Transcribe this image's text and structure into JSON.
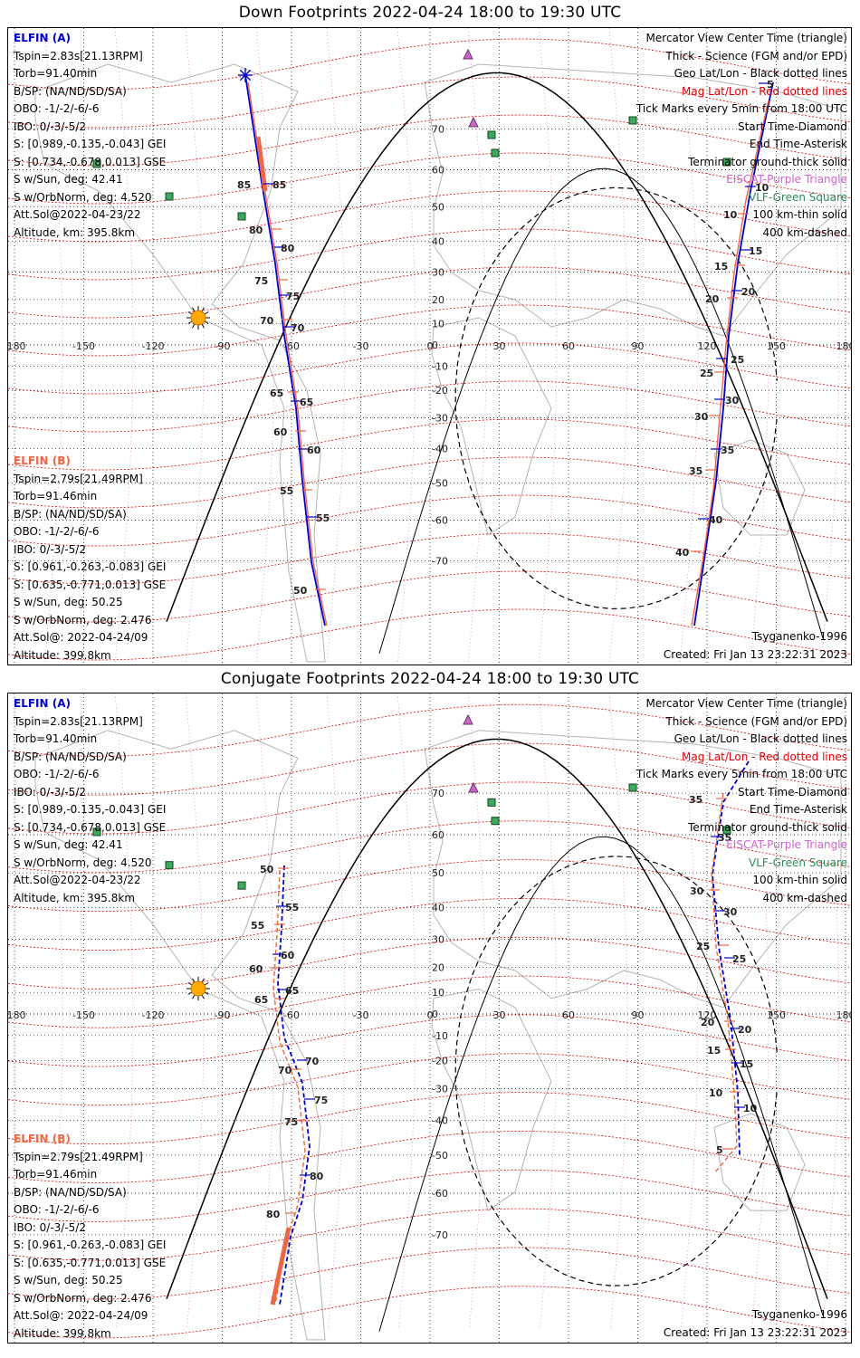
{
  "colors": {
    "elfin_a": "#0000cc",
    "elfin_b": "#ee6644",
    "geo_grid": "#000000",
    "mag_grid": "#dd0000",
    "land": "#b4b4b4",
    "science": "#ee6644",
    "vlf": "#2e8b57",
    "eiscat": "#cc66cc"
  },
  "panels": [
    {
      "title": "Down Footprints 2022-04-24 18:00 to 19:30 UTC",
      "elfin_a": {
        "name": "ELFIN (A)",
        "lines": [
          "Tspin=2.83s[21.13RPM]",
          "Torb=91.40min",
          "B/SP: (NA/ND/SD/SA)",
          "OBO: -1/-2/-6/-6",
          "IBO: 0/-3/-5/2",
          "S: [0.989,-0.135,-0.043] GEI",
          "S: [0.734,-0.678,0.013] GSE",
          "S w/Sun, deg: 42.41",
          "S w/OrbNorm, deg: 4.520",
          "Att.Sol@2022-04-23/22",
          "Altitude, km: 395.8km"
        ]
      },
      "elfin_b": {
        "name": "ELFIN (B)",
        "lines": [
          "Tspin=2.79s[21.49RPM]",
          "Torb=91.46min",
          "B/SP: (NA/ND/SD/SA)",
          "OBO: -1/-2/-6/-6",
          "IBO: 0/-3/-5/2",
          "S: [0.961,-0.263,-0.083] GEI",
          "S: [0.635,-0.771,0.013] GSE",
          "S w/Sun, deg: 50.25",
          "S w/OrbNorm, deg: 2.476",
          "Att.Sol@: 2022-04-24/09",
          "Altitude: 399.8km"
        ]
      },
      "legend": [
        "Mercator View Center Time (triangle)",
        "Thick - Science (FGM and/or EPD)",
        "Geo Lat/Lon - Black dotted lines",
        "Mag Lat/Lon - Red dotted lines",
        "Tick Marks every 5min from 18:00 UTC",
        "Start Time-Diamond",
        "End Time-Asterisk",
        "Terminator ground-thick solid",
        "EISCAT-Purple Triangle",
        "VLF-Green Square",
        "100 km-thin solid",
        "400 km-dashed"
      ],
      "model": "Tsyganenko-1996",
      "created": "Created: Fri Jan 13 23:22:31 2023",
      "track_a_ticks": [
        "85",
        "80",
        "75",
        "70",
        "65",
        "60",
        "55",
        "5",
        "10",
        "15",
        "20",
        "25",
        "30",
        "35",
        "40"
      ],
      "track_b_ticks": [
        "85",
        "80",
        "75",
        "70",
        "65",
        "60",
        "55",
        "50",
        "10",
        "15",
        "20",
        "25",
        "30",
        "35",
        "40"
      ]
    },
    {
      "title": "Conjugate Footprints 2022-04-24 18:00 to 19:30 UTC",
      "elfin_a": {
        "name": "ELFIN (A)",
        "lines": [
          "Tspin=2.83s[21.13RPM]",
          "Torb=91.40min",
          "B/SP: (NA/ND/SD/SA)",
          "OBO: -1/-2/-6/-6",
          "IBO: 0/-3/-5/2",
          "S: [0.989,-0.135,-0.043] GEI",
          "S: [0.734,-0.678,0.013] GSE",
          "S w/Sun, deg: 42.41",
          "S w/OrbNorm, deg: 4.520",
          "Att.Sol@2022-04-23/22",
          "Altitude, km: 395.8km"
        ]
      },
      "elfin_b": {
        "name": "ELFIN (B)",
        "lines": [
          "Tspin=2.79s[21.49RPM]",
          "Torb=91.46min",
          "B/SP: (NA/ND/SD/SA)",
          "OBO: -1/-2/-6/-6",
          "IBO: 0/-3/-5/2",
          "S: [0.961,-0.263,-0.083] GEI",
          "S: [0.635,-0.771,0.013] GSE",
          "S w/Sun, deg: 50.25",
          "S w/OrbNorm, deg: 2.476",
          "Att.Sol@: 2022-04-24/09",
          "Altitude: 399.8km"
        ]
      },
      "legend": [
        "Mercator View Center Time (triangle)",
        "Thick - Science (FGM and/or EPD)",
        "Geo Lat/Lon - Black dotted lines",
        "Mag Lat/Lon - Red dotted lines",
        "Tick Marks every 5min from 18:00 UTC",
        "Start Time-Diamond",
        "End Time-Asterisk",
        "Terminator ground-thick solid",
        "EISCAT-Purple Triangle",
        "VLF-Green Square",
        "100 km-thin solid",
        "400 km-dashed"
      ],
      "model": "Tsyganenko-1996",
      "created": "Created: Fri Jan 13 23:22:31 2023",
      "track_a_ticks": [
        "55",
        "60",
        "65",
        "70",
        "75",
        "80",
        "35",
        "30",
        "25",
        "20",
        "15",
        "10"
      ],
      "track_b_ticks": [
        "50",
        "55",
        "60",
        "65",
        "70",
        "75",
        "80",
        "35",
        "30",
        "25",
        "20",
        "15",
        "10",
        "5"
      ]
    }
  ],
  "map": {
    "lon_labels": [
      "-180",
      "-150",
      "-120",
      "-90",
      "-60",
      "-30",
      "0",
      "30",
      "60",
      "90",
      "120",
      "150",
      "180"
    ],
    "lat_labels": [
      "70",
      "60",
      "50",
      "40",
      "30",
      "20",
      "10",
      "0",
      "-10",
      "-20",
      "-30",
      "-40",
      "-50",
      "-60",
      "-70"
    ],
    "lon_range": [
      -180,
      180
    ],
    "projection": "Mercator"
  }
}
